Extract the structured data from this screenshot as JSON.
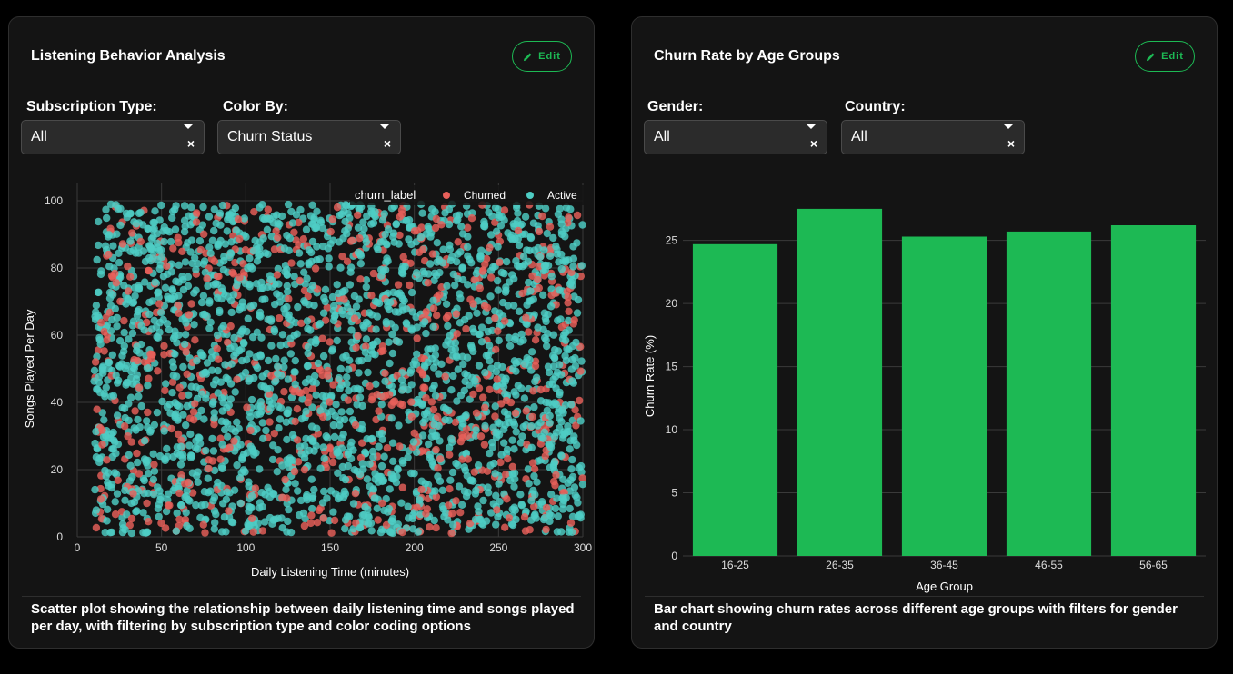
{
  "left_panel": {
    "title": "Listening Behavior Analysis",
    "edit_label": "Edit",
    "filters": [
      {
        "label": "Subscription Type:",
        "value": "All"
      },
      {
        "label": "Color By:",
        "value": "Churn Status"
      }
    ],
    "description": "Scatter plot showing the relationship between daily listening time and songs played per day, with filtering by subscription type and color coding options"
  },
  "right_panel": {
    "title": "Churn Rate by Age Groups",
    "edit_label": "Edit",
    "filters": [
      {
        "label": "Gender:",
        "value": "All"
      },
      {
        "label": "Country:",
        "value": "All"
      }
    ],
    "description": "Bar chart showing churn rates across different age groups with filters for gender and country"
  },
  "colors": {
    "accent": "#1db954",
    "churned": "#e8605a",
    "active": "#4ecdc4",
    "panel_bg": "#141414"
  },
  "chart_data": [
    {
      "type": "scatter",
      "title": "",
      "xlabel": "Daily Listening Time (minutes)",
      "ylabel": "Songs Played Per Day",
      "xlim": [
        0,
        300
      ],
      "ylim": [
        0,
        100
      ],
      "xticks": [
        0,
        50,
        100,
        150,
        200,
        250,
        300
      ],
      "yticks": [
        0,
        20,
        40,
        60,
        80,
        100
      ],
      "grid": true,
      "legend": {
        "title": "churn_label",
        "placement": "top-right"
      },
      "series": [
        {
          "name": "Churned",
          "x_range": [
            10,
            300
          ],
          "y_range": [
            1,
            99
          ],
          "share": 0.25
        },
        {
          "name": "Active",
          "x_range": [
            10,
            300
          ],
          "y_range": [
            1,
            99
          ],
          "share": 0.75
        }
      ]
    },
    {
      "type": "bar",
      "title": "",
      "xlabel": "Age Group",
      "ylabel": "Churn Rate (%)",
      "categories": [
        "16-25",
        "26-35",
        "36-45",
        "46-55",
        "56-65"
      ],
      "values": [
        24.7,
        27.5,
        25.3,
        25.7,
        26.2
      ],
      "ylim": [
        0,
        28.5
      ],
      "yticks": [
        0,
        5,
        10,
        15,
        20,
        25
      ],
      "grid": true,
      "color": "#1db954"
    }
  ]
}
